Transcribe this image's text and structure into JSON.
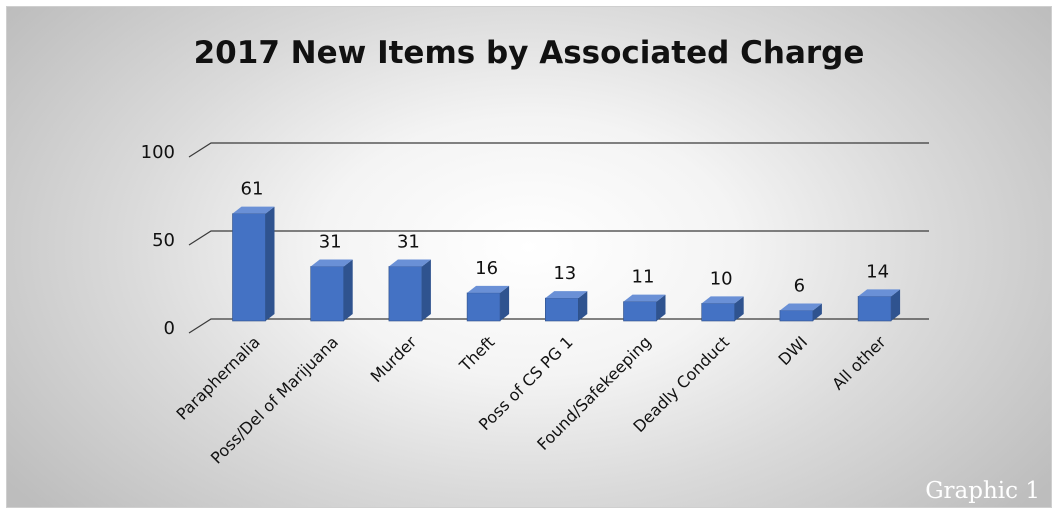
{
  "caption": "Graphic 1",
  "chart_data": {
    "type": "bar",
    "title": "2017 New Items by Associated Charge",
    "xlabel": "",
    "ylabel": "",
    "ylim": [
      0,
      100
    ],
    "yticks": [
      0,
      50,
      100
    ],
    "grid": true,
    "three_d": true,
    "categories": [
      "Paraphernalia",
      "Poss/Del of Marijuana",
      "Murder",
      "Theft",
      "Poss of CS PG 1",
      "Found/Safekeeping",
      "Deadly Conduct",
      "DWI",
      "All other"
    ],
    "series": [
      {
        "values": [
          61,
          31,
          31,
          16,
          13,
          11,
          10,
          6,
          14
        ]
      }
    ],
    "colors": {
      "bar_front": "#4472c4",
      "bar_side": "#2f538f",
      "bar_top": "#6a90d6",
      "grid": "#3a3a3a"
    }
  }
}
